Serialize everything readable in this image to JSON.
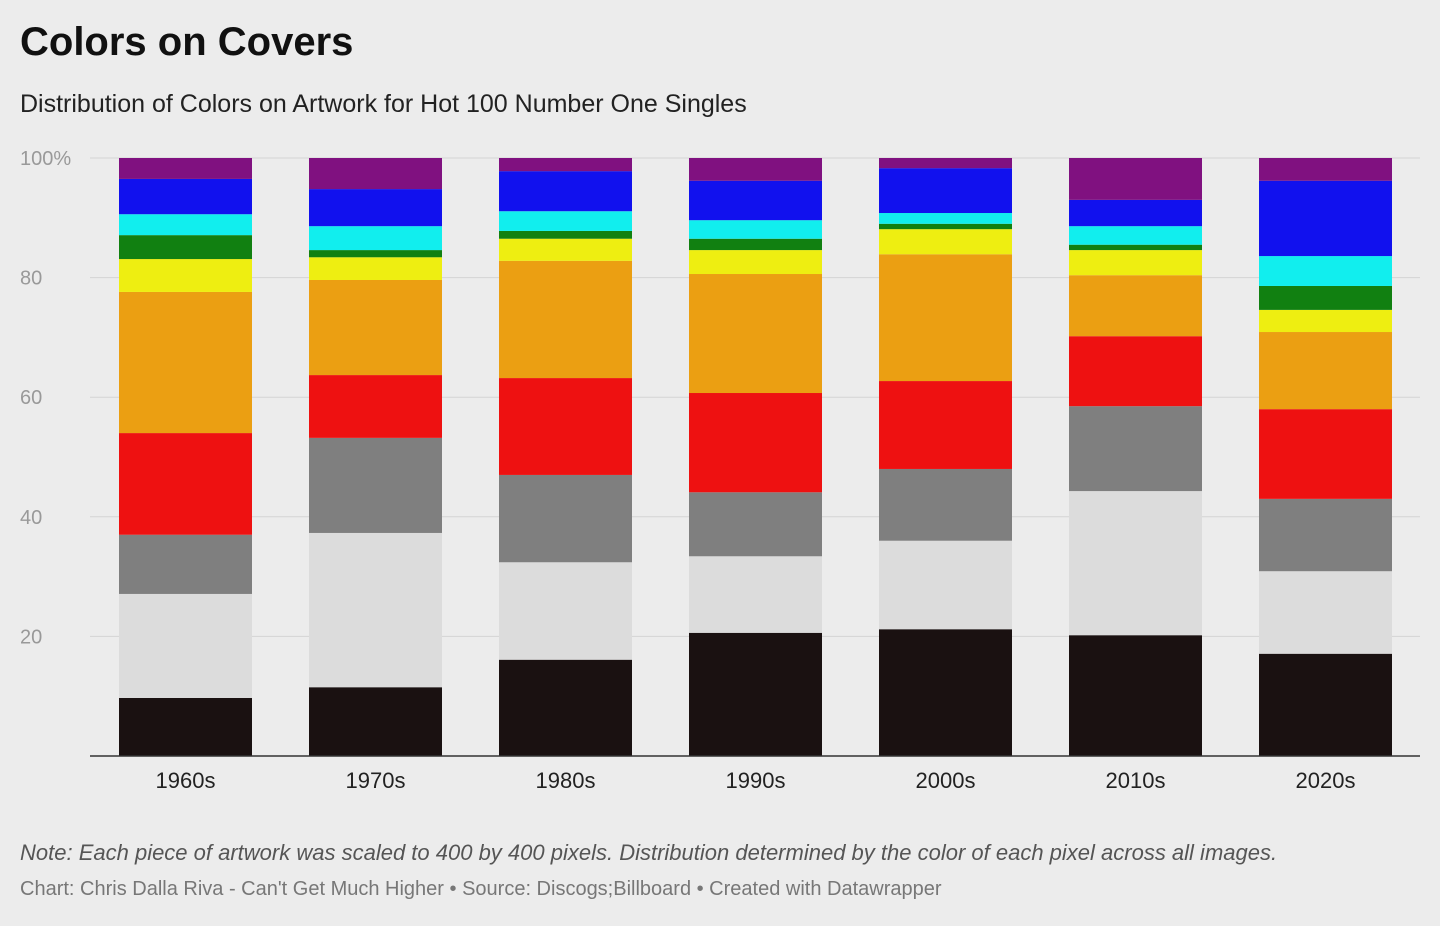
{
  "chart_data": {
    "type": "bar",
    "stacked": true,
    "title": "Colors on Covers",
    "subtitle": "Distribution of Colors on Artwork for Hot 100 Number One Singles",
    "xlabel": "",
    "ylabel": "",
    "ylim": [
      0,
      100
    ],
    "yticks": [
      20,
      40,
      60,
      80,
      100
    ],
    "ytick_labels": [
      "20",
      "40",
      "60",
      "80",
      "100%"
    ],
    "grid": true,
    "categories": [
      "1960s",
      "1970s",
      "1980s",
      "1990s",
      "2000s",
      "2010s",
      "2020s"
    ],
    "series": [
      {
        "color": "#1a1111",
        "values": [
          9.7,
          11.5,
          16.1,
          20.6,
          21.2,
          20.2,
          17.1
        ]
      },
      {
        "color": "#dcdcdc",
        "values": [
          17.4,
          25.8,
          16.3,
          12.8,
          14.8,
          24.1,
          13.8
        ]
      },
      {
        "color": "#7f7f7f",
        "values": [
          9.9,
          15.9,
          14.6,
          10.7,
          12.0,
          14.2,
          12.1
        ]
      },
      {
        "color": "#ee1111",
        "values": [
          17.0,
          10.5,
          16.2,
          16.6,
          14.7,
          11.7,
          15.0
        ]
      },
      {
        "color": "#eb9f12",
        "values": [
          23.6,
          15.9,
          19.6,
          19.9,
          21.2,
          10.2,
          12.9
        ]
      },
      {
        "color": "#eeee11",
        "values": [
          5.5,
          3.8,
          3.7,
          4.0,
          4.2,
          4.2,
          3.7
        ]
      },
      {
        "color": "#118011",
        "values": [
          4.0,
          1.2,
          1.3,
          1.9,
          0.9,
          0.9,
          4.0
        ]
      },
      {
        "color": "#11eeee",
        "values": [
          3.5,
          4.0,
          3.3,
          3.1,
          1.8,
          3.1,
          5.0
        ]
      },
      {
        "color": "#1111ee",
        "values": [
          5.9,
          6.2,
          6.7,
          6.6,
          7.5,
          4.4,
          12.6
        ]
      },
      {
        "color": "#801180",
        "values": [
          3.5,
          5.2,
          2.2,
          3.8,
          1.7,
          7.0,
          3.8
        ]
      }
    ],
    "note": "Note: Each piece of artwork was scaled to 400 by 400 pixels. Distribution determined by the color of each pixel across all images.",
    "credits": "Chart: Chris Dalla Riva - Can't Get Much Higher • Source: Discogs;Billboard • Created with Datawrapper"
  }
}
